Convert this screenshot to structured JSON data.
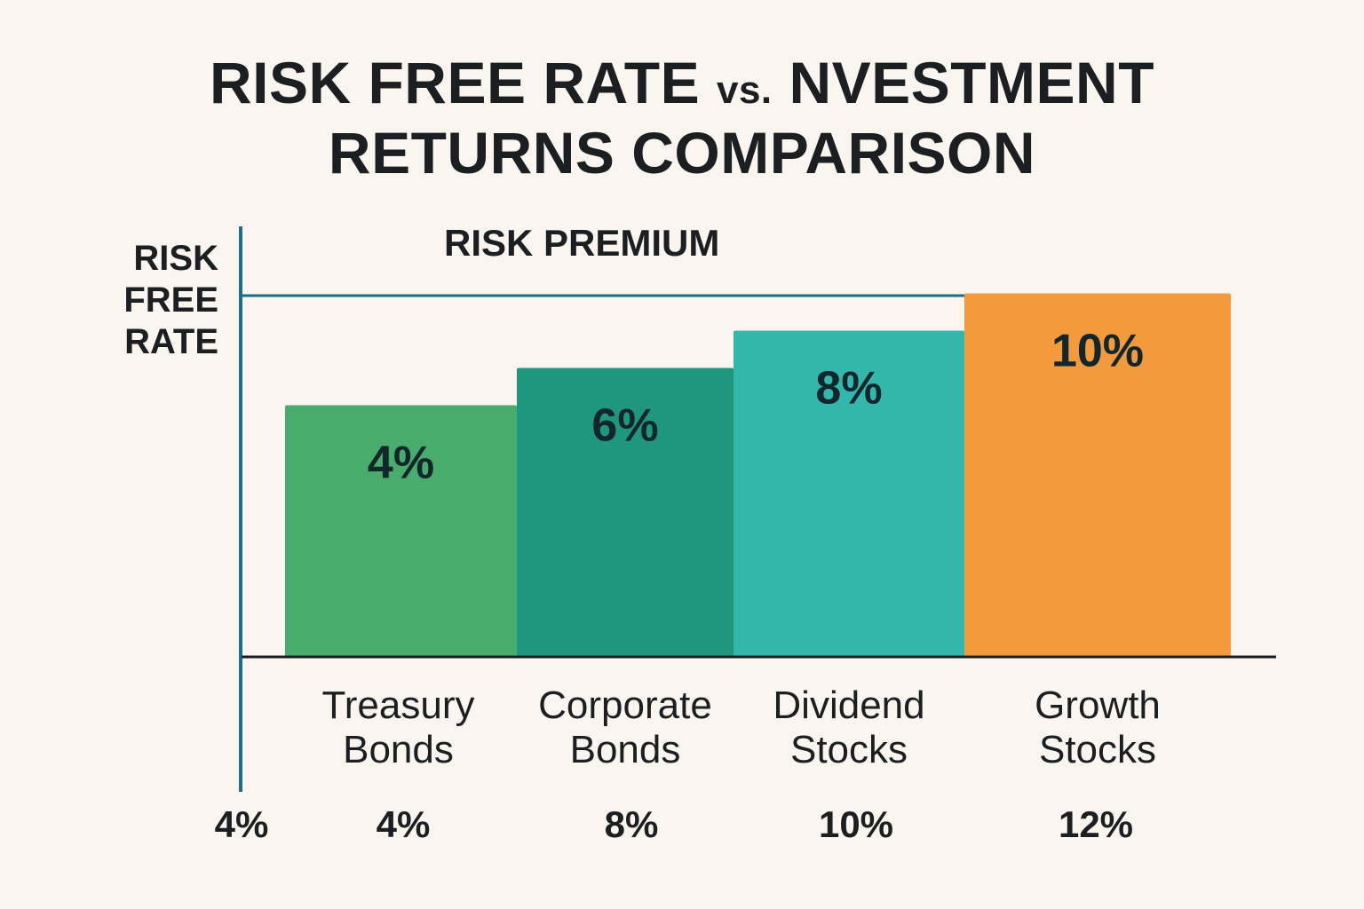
{
  "chart_data": {
    "type": "bar",
    "title_part1": "RISK FREE RATE",
    "title_vs": "vs.",
    "title_part2": "NVESTMENT",
    "title_line2": "RETURNS COMPARISON",
    "ylabel": [
      "RISK",
      "FREE",
      "RATE"
    ],
    "annotation": "RISK PREMIUM",
    "categories": [
      [
        "Treasury",
        "Bonds"
      ],
      [
        "Corporate",
        "Bonds"
      ],
      [
        "Dividend",
        "Stocks"
      ],
      [
        "Growth",
        "Stocks"
      ]
    ],
    "values": [
      4,
      6,
      8,
      10
    ],
    "value_labels": [
      "4%",
      "6%",
      "8%",
      "10%"
    ],
    "bottom_labels": [
      "4%",
      "4%",
      "8%",
      "10%",
      "12%"
    ],
    "colors": [
      "#47ac6c",
      "#1f977f",
      "#33b7ad",
      "#f29a3c"
    ],
    "axis_color": "#1a6e86",
    "ylim": [
      -9.5,
      11.5
    ],
    "grid": false
  }
}
